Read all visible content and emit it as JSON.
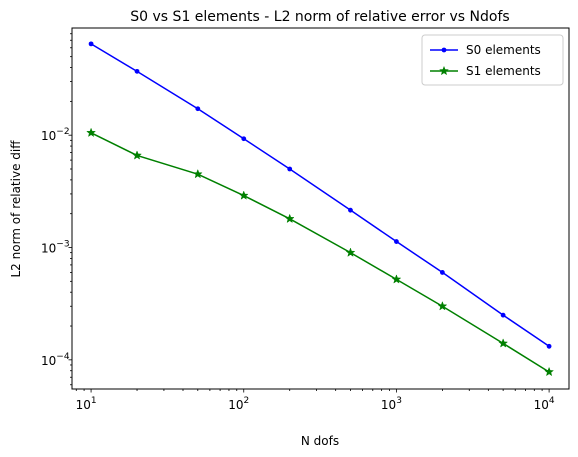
{
  "chart_data": {
    "type": "line",
    "title": "S0 vs S1 elements - L2 norm of relative error vs Ndofs",
    "xlabel": "N dofs",
    "ylabel": "L2 norm of relative diff",
    "xscale": "log",
    "yscale": "log",
    "xlim": [
      7.5,
      13500
    ],
    "ylim": [
      5.5e-05,
      0.09
    ],
    "x_ticks": [
      {
        "value": 10,
        "base": "10",
        "exp": "1"
      },
      {
        "value": 100,
        "base": "10",
        "exp": "2"
      },
      {
        "value": 1000,
        "base": "10",
        "exp": "3"
      },
      {
        "value": 10000,
        "base": "10",
        "exp": "4"
      }
    ],
    "y_ticks": [
      {
        "value": 0.0001,
        "base": "10",
        "exp": "−4"
      },
      {
        "value": 0.001,
        "base": "10",
        "exp": "−3"
      },
      {
        "value": 0.01,
        "base": "10",
        "exp": "−2"
      }
    ],
    "grid": false,
    "legend": "top-right",
    "series": [
      {
        "name": "S0 elements",
        "color": "#0000ff",
        "marker": "point",
        "x": [
          10,
          20,
          50,
          100,
          200,
          500,
          1000,
          2000,
          5000,
          10000
        ],
        "y": [
          0.065,
          0.037,
          0.0172,
          0.0093,
          0.005,
          0.00215,
          0.00113,
          0.0006,
          0.00025,
          0.000132
        ]
      },
      {
        "name": "S1 elements",
        "color": "#008000",
        "marker": "star",
        "x": [
          10,
          20,
          50,
          100,
          200,
          500,
          1000,
          2000,
          5000,
          10000
        ],
        "y": [
          0.0105,
          0.0066,
          0.0045,
          0.0029,
          0.0018,
          0.0009,
          0.00052,
          0.0003,
          0.00014,
          7.8e-05
        ]
      }
    ]
  }
}
